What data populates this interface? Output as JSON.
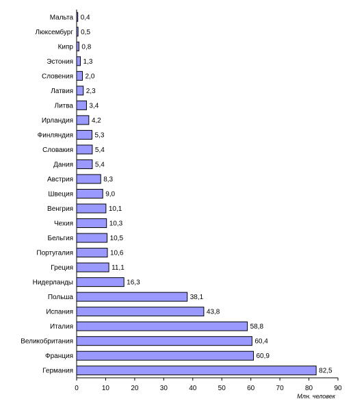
{
  "chart_data": {
    "type": "bar",
    "orientation": "horizontal",
    "categories": [
      "Мальта",
      "Люксембург",
      "Кипр",
      "Эстония",
      "Словения",
      "Латвия",
      "Литва",
      "Ирландия",
      "Финляндия",
      "Словакия",
      "Дания",
      "Австрия",
      "Швеция",
      "Венгрия",
      "Чехия",
      "Бельгия",
      "Португалия",
      "Греция",
      "Нидерланды",
      "Польша",
      "Испания",
      "Италия",
      "Великобритания",
      "Франция",
      "Германия"
    ],
    "values": [
      0.4,
      0.5,
      0.8,
      1.3,
      2.0,
      2.3,
      3.4,
      4.2,
      5.3,
      5.4,
      5.4,
      8.3,
      9.0,
      10.1,
      10.3,
      10.5,
      10.6,
      11.1,
      16.3,
      38.1,
      43.8,
      58.8,
      60.4,
      60.9,
      82.5
    ],
    "value_labels": [
      "0,4",
      "0,5",
      "0,8",
      "1,3",
      "2,0",
      "2,3",
      "3,4",
      "4,2",
      "5,3",
      "5,4",
      "5,4",
      "8,3",
      "9,0",
      "10,1",
      "10,3",
      "10,5",
      "10,6",
      "11,1",
      "16,3",
      "38,1",
      "43,8",
      "58,8",
      "60,4",
      "60,9",
      "82,5"
    ],
    "xticks": [
      "0",
      "10",
      "20",
      "30",
      "40",
      "50",
      "60",
      "70",
      "80",
      "90"
    ],
    "xlim": [
      0,
      90
    ],
    "xlabel": "Млн. человек",
    "title": "",
    "grid": false,
    "legend": "none",
    "bar_color": "#9999ff",
    "bar_stroke": "#000000"
  }
}
